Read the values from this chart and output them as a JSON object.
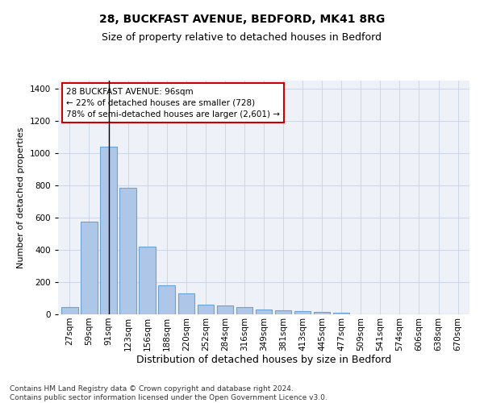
{
  "title1": "28, BUCKFAST AVENUE, BEDFORD, MK41 8RG",
  "title2": "Size of property relative to detached houses in Bedford",
  "xlabel": "Distribution of detached houses by size in Bedford",
  "ylabel": "Number of detached properties",
  "categories": [
    "27sqm",
    "59sqm",
    "91sqm",
    "123sqm",
    "156sqm",
    "188sqm",
    "220sqm",
    "252sqm",
    "284sqm",
    "316sqm",
    "349sqm",
    "381sqm",
    "413sqm",
    "445sqm",
    "477sqm",
    "509sqm",
    "541sqm",
    "574sqm",
    "606sqm",
    "638sqm",
    "670sqm"
  ],
  "values": [
    45,
    575,
    1040,
    785,
    420,
    180,
    130,
    58,
    55,
    45,
    30,
    27,
    20,
    16,
    10,
    0,
    0,
    0,
    0,
    0,
    0
  ],
  "bar_color": "#aec6e8",
  "bar_edge_color": "#6aa3d5",
  "highlight_bar_index": 2,
  "highlight_line_color": "#000000",
  "annotation_text": "28 BUCKFAST AVENUE: 96sqm\n← 22% of detached houses are smaller (728)\n78% of semi-detached houses are larger (2,601) →",
  "annotation_box_color": "#ffffff",
  "annotation_box_edge_color": "#cc0000",
  "ylim": [
    0,
    1450
  ],
  "yticks": [
    0,
    200,
    400,
    600,
    800,
    1000,
    1200,
    1400
  ],
  "grid_color": "#d0d8e8",
  "background_color": "#eef2f8",
  "footer_text": "Contains HM Land Registry data © Crown copyright and database right 2024.\nContains public sector information licensed under the Open Government Licence v3.0.",
  "title1_fontsize": 10,
  "title2_fontsize": 9,
  "xlabel_fontsize": 9,
  "ylabel_fontsize": 8,
  "tick_fontsize": 7.5,
  "annotation_fontsize": 7.5,
  "footer_fontsize": 6.5
}
